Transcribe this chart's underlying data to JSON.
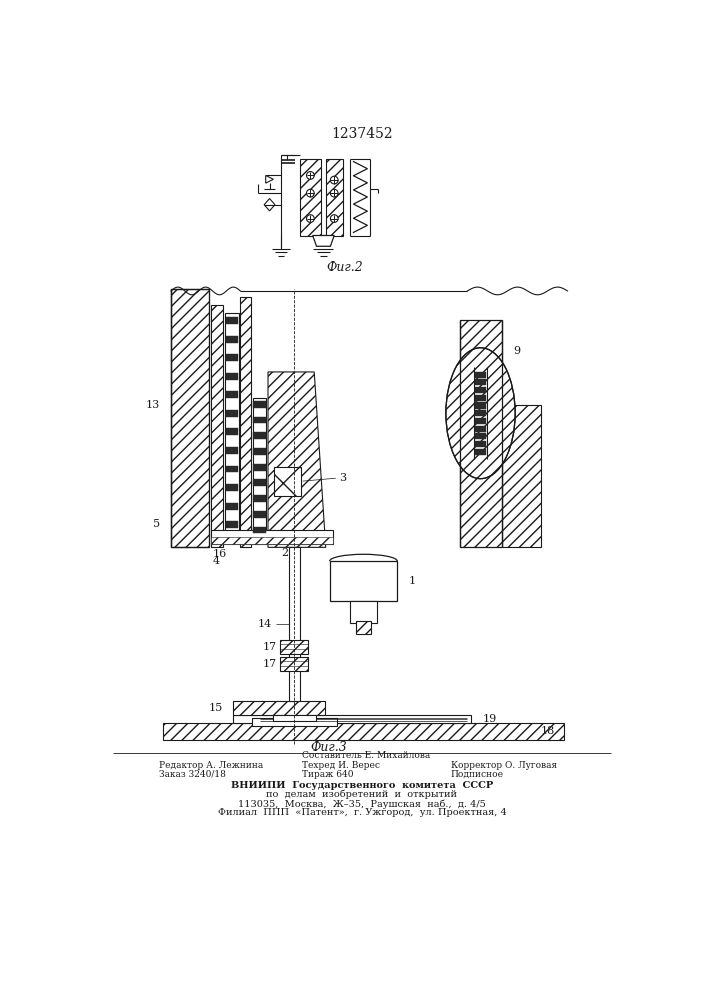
{
  "title": "1237452",
  "fig2_label": "Фиг.2",
  "fig3_label": "Фиг.3",
  "footer_left_line1": "Редактор А. Лежнина",
  "footer_left_line2": "Заказ 3240/18",
  "footer_mid_line1": "Составитель Е. Михайлова",
  "footer_mid_line2": "Техред И. Верес",
  "footer_mid_line3": "Тираж 640",
  "footer_right_line1": "Корректор О. Луговая",
  "footer_right_line2": "Подписное",
  "footer_vniip1": "ВНИИПИ  Государственного  комитета  СССР",
  "footer_vniip2": "по  делам  изобретений  и  открытий",
  "footer_vniip3": "113035,  Москва,  Ж–35,  Раушская  наб.,  д. 4/5",
  "footer_vniip4": "Филиал  ППП  «Патент»,  г. Ужгород,  ул. Проектная, 4",
  "bg_color": "#ffffff",
  "line_color": "#1a1a1a"
}
